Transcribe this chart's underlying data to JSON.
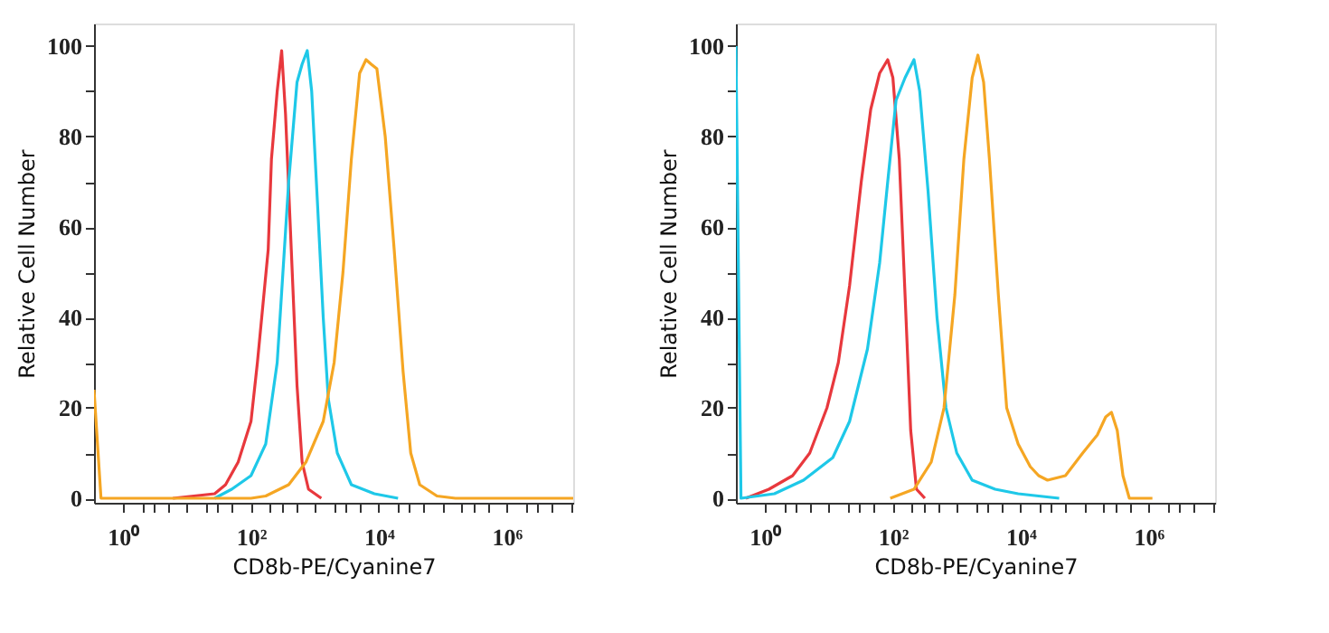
{
  "chart_data": [
    {
      "type": "line",
      "xlabel": "CD8b-PE/Cyanine7",
      "ylabel": "Relative Cell Number",
      "log": "x",
      "grid": false,
      "legend": false,
      "marker": "none",
      "line_style": "solid",
      "xlim": [
        0.35,
        11000000
      ],
      "ylim": [
        -1,
        105
      ],
      "xticks": [
        {
          "value": 1,
          "label": "10⁰"
        },
        {
          "value": 2,
          "label": null
        },
        {
          "value": 3,
          "label": null
        },
        {
          "value": 5,
          "label": null
        },
        {
          "value": 10,
          "label": null
        },
        {
          "value": 20,
          "label": null
        },
        {
          "value": 30,
          "label": null
        },
        {
          "value": 50,
          "label": null
        },
        {
          "value": 100,
          "label": "10²"
        },
        {
          "value": 200,
          "label": null
        },
        {
          "value": 300,
          "label": null
        },
        {
          "value": 500,
          "label": null
        },
        {
          "value": 1000,
          "label": null
        },
        {
          "value": 2000,
          "label": null
        },
        {
          "value": 3000,
          "label": null
        },
        {
          "value": 5000,
          "label": null
        },
        {
          "value": 10000,
          "label": "10⁴"
        },
        {
          "value": 20000,
          "label": null
        },
        {
          "value": 30000,
          "label": null
        },
        {
          "value": 50000,
          "label": null
        },
        {
          "value": 100000,
          "label": null
        },
        {
          "value": 200000,
          "label": null
        },
        {
          "value": 300000,
          "label": null
        },
        {
          "value": 500000,
          "label": null
        },
        {
          "value": 1000000,
          "label": "10⁶"
        },
        {
          "value": 2000000,
          "label": null
        },
        {
          "value": 3000000,
          "label": null
        },
        {
          "value": 5000000,
          "label": null
        },
        {
          "value": 10000000,
          "label": null
        }
      ],
      "yticks": [
        0,
        {
          "value": 10,
          "label": null
        },
        20,
        {
          "value": 30,
          "label": null
        },
        40,
        {
          "value": 50,
          "label": null
        },
        60,
        {
          "value": 70,
          "label": null
        },
        80,
        {
          "value": 90,
          "label": null
        },
        100
      ],
      "series": [
        {
          "color": "#e8383d",
          "x": [
            6,
            27,
            40,
            63,
            100,
            126,
            186,
            209,
            257,
            302,
            347,
            427,
            525,
            631,
            794,
            1260
          ],
          "values": [
            0,
            1,
            3,
            8,
            17,
            30,
            55,
            75,
            90,
            99,
            85,
            55,
            25,
            8,
            2,
            0
          ]
        },
        {
          "color": "#1ec8e8",
          "x": [
            27,
            50,
            100,
            170,
            257,
            389,
            525,
            631,
            759,
            891,
            1100,
            1350,
            1620,
            2240,
            3720,
            8510,
            20000
          ],
          "values": [
            0,
            2,
            5,
            12,
            30,
            70,
            92,
            96,
            99,
            90,
            65,
            40,
            22,
            10,
            3,
            1,
            0
          ]
        },
        {
          "color": "#f5a623",
          "x": [
            0.35,
            0.45,
            100,
            170,
            389,
            724,
            1350,
            2000,
            2750,
            3720,
            5010,
            6310,
            7590,
            9330,
            12600,
            17400,
            24000,
            31600,
            43700,
            81300,
            158000,
            11000000
          ],
          "values": [
            24,
            0,
            0,
            0.5,
            3,
            8,
            17,
            30,
            50,
            75,
            94,
            97,
            96,
            95,
            80,
            55,
            28,
            10,
            3,
            0.5,
            0,
            0
          ]
        }
      ]
    },
    {
      "type": "line",
      "xlabel": "CD8b-PE/Cyanine7",
      "ylabel": "Relative Cell Number",
      "log": "x",
      "grid": false,
      "legend": false,
      "marker": "none",
      "line_style": "solid",
      "xlim": [
        0.35,
        11000000
      ],
      "ylim": [
        -1,
        105
      ],
      "xticks": [
        {
          "value": 1,
          "label": "10⁰"
        },
        {
          "value": 2,
          "label": null
        },
        {
          "value": 3,
          "label": null
        },
        {
          "value": 5,
          "label": null
        },
        {
          "value": 10,
          "label": null
        },
        {
          "value": 20,
          "label": null
        },
        {
          "value": 30,
          "label": null
        },
        {
          "value": 50,
          "label": null
        },
        {
          "value": 100,
          "label": "10²"
        },
        {
          "value": 200,
          "label": null
        },
        {
          "value": 300,
          "label": null
        },
        {
          "value": 500,
          "label": null
        },
        {
          "value": 1000,
          "label": null
        },
        {
          "value": 2000,
          "label": null
        },
        {
          "value": 3000,
          "label": null
        },
        {
          "value": 5000,
          "label": null
        },
        {
          "value": 10000,
          "label": "10⁴"
        },
        {
          "value": 20000,
          "label": null
        },
        {
          "value": 30000,
          "label": null
        },
        {
          "value": 50000,
          "label": null
        },
        {
          "value": 100000,
          "label": null
        },
        {
          "value": 200000,
          "label": null
        },
        {
          "value": 300000,
          "label": null
        },
        {
          "value": 500000,
          "label": null
        },
        {
          "value": 1000000,
          "label": "10⁶"
        },
        {
          "value": 2000000,
          "label": null
        },
        {
          "value": 3000000,
          "label": null
        },
        {
          "value": 5000000,
          "label": null
        },
        {
          "value": 10000000,
          "label": null
        }
      ],
      "yticks": [
        0,
        {
          "value": 10,
          "label": null
        },
        20,
        {
          "value": 30,
          "label": null
        },
        40,
        {
          "value": 50,
          "label": null
        },
        60,
        {
          "value": 70,
          "label": null
        },
        80,
        {
          "value": 90,
          "label": null
        },
        100
      ],
      "series": [
        {
          "color": "#e8383d",
          "x": [
            0.5,
            1.15,
            2.7,
            5,
            9.3,
            14,
            21,
            32,
            45,
            62,
            83,
            100,
            126,
            155,
            190,
            234,
            316
          ],
          "values": [
            0,
            2,
            5,
            10,
            20,
            30,
            47,
            70,
            86,
            94,
            97,
            93,
            75,
            45,
            15,
            2,
            0
          ]
        },
        {
          "color": "#1ec8e8",
          "x": [
            0.35,
            0.42,
            1.4,
            4,
            11.5,
            21,
            40,
            62,
            83,
            112,
            155,
            214,
            263,
            355,
            490,
            676,
            1000,
            1740,
            3980,
            9120,
            40000
          ],
          "values": [
            100,
            0,
            1,
            4,
            9,
            17,
            33,
            52,
            70,
            88,
            93,
            97,
            90,
            68,
            40,
            20,
            10,
            4,
            2,
            1,
            0
          ]
        },
        {
          "color": "#f5a623",
          "x": [
            91,
            214,
            398,
            631,
            933,
            1290,
            1740,
            2140,
            2630,
            3240,
            4470,
            6030,
            9120,
            14100,
            19100,
            26300,
            50100,
            93300,
            158000,
            214000,
            263000,
            324000,
            398000,
            501000,
            1150000
          ],
          "values": [
            0,
            2,
            8,
            20,
            45,
            75,
            93,
            98,
            92,
            75,
            45,
            20,
            12,
            7,
            5,
            4,
            5,
            10,
            14,
            18,
            19,
            15,
            5,
            0,
            0
          ]
        }
      ]
    }
  ]
}
